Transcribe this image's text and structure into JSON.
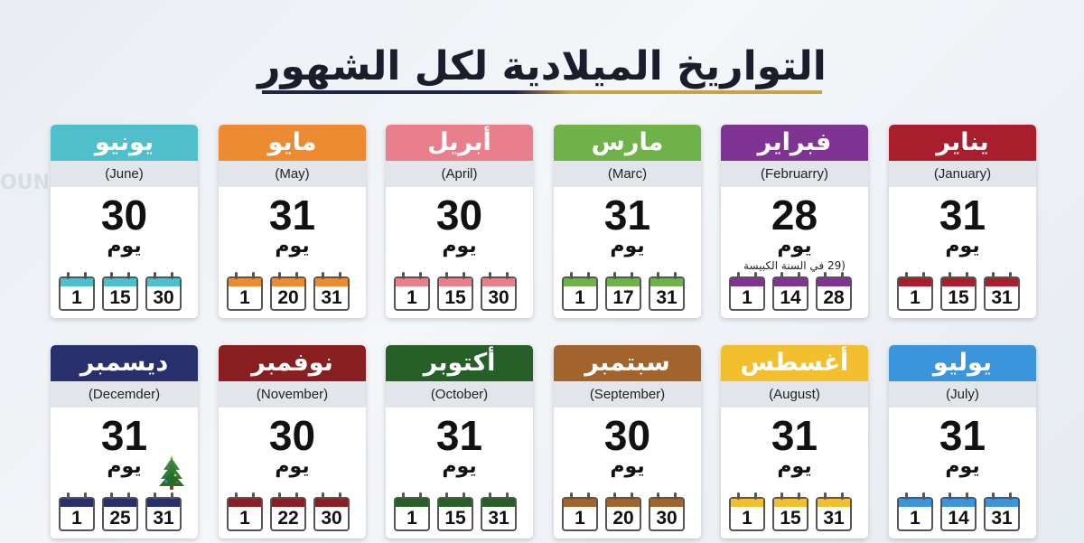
{
  "title": "التواريخ الميلادية لكل الشهور",
  "unit_label": "يوم",
  "months": [
    {
      "name": "يناير",
      "latin": "(January)",
      "days": "31",
      "note": "",
      "color": "#a81e2c",
      "dates": [
        "1",
        "15",
        "31"
      ]
    },
    {
      "name": "فبراير",
      "latin": "(Februarry)",
      "days": "28",
      "note": "(29 في السنة الكبيسة",
      "color": "#7f3494",
      "dates": [
        "1",
        "14",
        "28"
      ]
    },
    {
      "name": "مارس",
      "latin": "(Marc)",
      "days": "31",
      "note": "",
      "color": "#6fb24a",
      "dates": [
        "1",
        "17",
        "31"
      ]
    },
    {
      "name": "أبريل",
      "latin": "(April)",
      "days": "30",
      "note": "",
      "color": "#ea7f8c",
      "dates": [
        "1",
        "15",
        "30"
      ]
    },
    {
      "name": "مايو",
      "latin": "(May)",
      "days": "31",
      "note": "",
      "color": "#ec8b31",
      "dates": [
        "1",
        "20",
        "31"
      ]
    },
    {
      "name": "يونيو",
      "latin": "(June)",
      "days": "30",
      "note": "",
      "color": "#4fc0cb",
      "dates": [
        "1",
        "15",
        "30"
      ]
    },
    {
      "name": "يوليو",
      "latin": "(July)",
      "days": "31",
      "note": "",
      "color": "#3a95dc",
      "dates": [
        "1",
        "14",
        "31"
      ]
    },
    {
      "name": "أغسطس",
      "latin": "(August)",
      "days": "31",
      "note": "",
      "color": "#f2c02f",
      "dates": [
        "1",
        "15",
        "31"
      ]
    },
    {
      "name": "سبتمبر",
      "latin": "(September)",
      "days": "30",
      "note": "",
      "color": "#a2632d",
      "dates": [
        "1",
        "20",
        "30"
      ]
    },
    {
      "name": "أكتوبر",
      "latin": "(October)",
      "days": "31",
      "note": "",
      "color": "#275f28",
      "dates": [
        "1",
        "15",
        "31"
      ]
    },
    {
      "name": "نوفمبر",
      "latin": "(November)",
      "days": "30",
      "note": "",
      "color": "#8a1f22",
      "dates": [
        "1",
        "22",
        "30"
      ]
    },
    {
      "name": "ديسمبر",
      "latin": "(Decemder)",
      "days": "31",
      "note": "",
      "color": "#27306b",
      "dates": [
        "1",
        "25",
        "31"
      ]
    }
  ],
  "decoration": {
    "december_icon": "christmas-tree-icon"
  }
}
